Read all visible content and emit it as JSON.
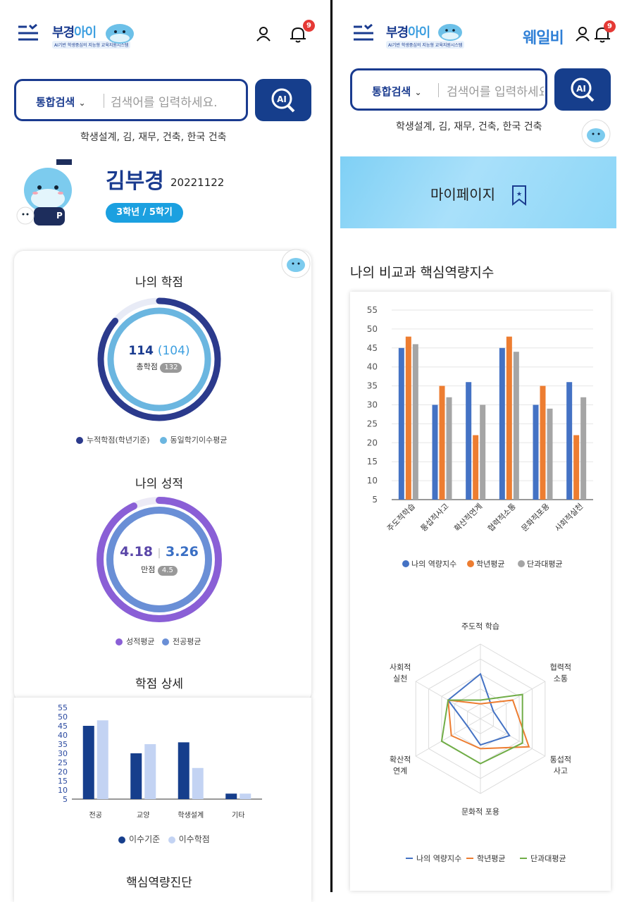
{
  "left": {
    "header": {
      "logo_name": "부경",
      "logo_name_ai": "아이",
      "logo_sub": "AI기반 학생중심의 지능형 교육지원시스템",
      "notification_count": "9"
    },
    "search": {
      "category": "통합검색",
      "placeholder": "검색어를 입력하세요.",
      "keywords": "학생설계, 김, 재무, 건축, 한국 건축"
    },
    "profile": {
      "name": "김부경",
      "student_id": "20221122",
      "grade_badge": "3학년 / 5학기"
    },
    "credits": {
      "title": "나의 학점",
      "value": "114",
      "avg_value": "(104)",
      "label": "총학점",
      "total": "132",
      "cumulative_fraction": 0.864,
      "avg_fraction": 0.788,
      "legend": [
        "누적학점(학년기준)",
        "동일학기이수평균"
      ],
      "colors": [
        "#2b3a8c",
        "#6bb6e0"
      ]
    },
    "grades": {
      "title": "나의 성적",
      "my_gpa": "4.18",
      "major_avg": "3.26",
      "label": "만점",
      "max": "4.5",
      "gpa_fraction": 0.929,
      "major_fraction": 0.724,
      "legend": [
        "성적평균",
        "전공평균"
      ],
      "colors": [
        "#8a5fd6",
        "#6a8fd6"
      ]
    },
    "credit_detail": {
      "title": "학점 상세",
      "legend": [
        "이수기준",
        "이수학점"
      ],
      "colors": [
        "#163e8c",
        "#c3d3f3"
      ]
    },
    "competency_title": "핵심역량진단"
  },
  "right": {
    "header": {
      "logo_name": "부경",
      "logo_name_ai": "아이",
      "logo_sub": "AI기반 학생중심의 지능형 교육지원시스템",
      "brand": "웨일비",
      "notification_count": "9"
    },
    "search": {
      "category": "통합검색",
      "placeholder": "검색어를 입력하세요.",
      "keywords": "학생설계, 김, 재무, 건축, 한국 건축"
    },
    "banner": {
      "title": "마이페이지"
    },
    "section_title": "나의 비교과 핵심역량지수",
    "colors": {
      "blue": "#4472c4",
      "orange": "#ed7d31",
      "gray": "#a5a5a5",
      "green": "#70ad47"
    }
  },
  "chart_data": [
    {
      "type": "bar",
      "categories": [
        "전공",
        "교양",
        "학생설계",
        "기타"
      ],
      "series": [
        {
          "name": "이수기준",
          "values": [
            45,
            30,
            36,
            8
          ]
        },
        {
          "name": "이수학점",
          "values": [
            48,
            35,
            22,
            8
          ]
        }
      ],
      "yticks": [
        5,
        10,
        15,
        20,
        25,
        30,
        35,
        40,
        45,
        50,
        55
      ],
      "ylim": [
        5,
        55
      ]
    },
    {
      "type": "bar",
      "categories": [
        "주도적학습",
        "통섭적사고",
        "확산적연계",
        "협력적소통",
        "문화적포용",
        "사회적실천"
      ],
      "series": [
        {
          "name": "나의 역량지수",
          "values": [
            45,
            30,
            36,
            45,
            30,
            36
          ]
        },
        {
          "name": "학년평균",
          "values": [
            48,
            35,
            22,
            48,
            35,
            22
          ]
        },
        {
          "name": "단과대평균",
          "values": [
            46,
            32,
            30,
            44,
            29,
            32
          ]
        }
      ],
      "yticks": [
        5,
        10,
        15,
        20,
        25,
        30,
        35,
        40,
        45,
        50,
        55
      ],
      "ylim": [
        5,
        55
      ]
    },
    {
      "type": "radar",
      "axes": [
        "주도적 학습",
        "협력적 소통",
        "통섭적 사고",
        "문화적 포용",
        "확산적 연계",
        "사회적 실천"
      ],
      "axes_lines": [
        [
          "주도적 학습"
        ],
        [
          "협력적",
          "소통"
        ],
        [
          "통섭적",
          "사고"
        ],
        [
          "문화적 포용"
        ],
        [
          "확산적",
          "연계"
        ],
        [
          "사회적",
          "실천"
        ]
      ],
      "series": [
        {
          "name": "나의 역량지수",
          "values": [
            0.6,
            0.2,
            0.45,
            0.35,
            0.2,
            0.5
          ]
        },
        {
          "name": "학년평균",
          "values": [
            0.2,
            0.5,
            0.75,
            0.4,
            0.45,
            0.5
          ]
        },
        {
          "name": "단과대평균",
          "values": [
            0.25,
            0.65,
            0.65,
            0.6,
            0.6,
            0.5
          ]
        }
      ],
      "rmax": 1
    }
  ]
}
